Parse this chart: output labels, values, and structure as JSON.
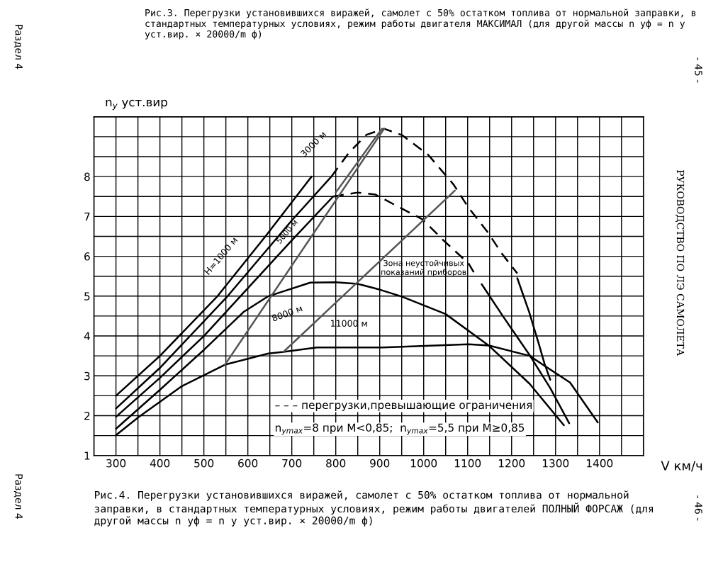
{
  "chart_data": {
    "type": "line",
    "ylabel": "n$_{y}$ уст.вир",
    "xlabel": "V км/ч",
    "xlim": [
      250,
      1500
    ],
    "ylim": [
      1,
      9.5
    ],
    "xticks": [
      300,
      {
        "value": 350,
        "label": null
      },
      400,
      {
        "value": 450,
        "label": null
      },
      500,
      {
        "value": 550,
        "label": null
      },
      600,
      {
        "value": 650,
        "label": null
      },
      700,
      {
        "value": 750,
        "label": null
      },
      800,
      {
        "value": 850,
        "label": null
      },
      900,
      {
        "value": 950,
        "label": null
      },
      1000,
      {
        "value": 1050,
        "label": null
      },
      1100,
      {
        "value": 1150,
        "label": null
      },
      1200,
      {
        "value": 1250,
        "label": null
      },
      1300,
      {
        "value": 1350,
        "label": null
      },
      1400,
      {
        "value": 1450,
        "label": null
      }
    ],
    "yticks": [
      1,
      {
        "value": 1.5,
        "label": null
      },
      2,
      {
        "value": 2.5,
        "label": null
      },
      3,
      {
        "value": 3.5,
        "label": null
      },
      4,
      {
        "value": 4.5,
        "label": null
      },
      5,
      {
        "value": 5.5,
        "label": null
      },
      6,
      {
        "value": 6.5,
        "label": null
      },
      7,
      {
        "value": 7.5,
        "label": null
      },
      8,
      {
        "value": 8.5,
        "label": null
      },
      {
        "value": 9,
        "label": null
      }
    ],
    "grid": true,
    "series": [
      {
        "color": "#000000",
        "line_style": "solid",
        "x": [
          300,
          400,
          531,
          640,
          745
        ],
        "values": [
          2.5,
          3.5,
          5.0,
          6.5,
          8.0
        ]
      },
      {
        "color": "#000000",
        "line_style": "solid",
        "x": [
          300,
          400,
          554,
          700,
          790
        ],
        "values": [
          2.18,
          3.2,
          5.0,
          6.9,
          8.0
        ]
      },
      {
        "color": "#000000",
        "line_style": "dashed",
        "x": [
          790,
          830,
          870,
          910,
          951,
          1010,
          1068,
          1102,
          1144,
          1179,
          1213
        ],
        "values": [
          8.0,
          8.6,
          9.05,
          9.2,
          9.04,
          8.55,
          7.8,
          7.22,
          6.63,
          6.05,
          5.57
        ]
      },
      {
        "color": "#000000",
        "line_style": "solid",
        "x": [
          1213,
          1240,
          1262,
          1275,
          1288
        ],
        "values": [
          5.45,
          4.6,
          3.8,
          3.3,
          2.9
        ]
      },
      {
        "color": "#000000",
        "line_style": "solid",
        "x": [
          300,
          400,
          500,
          600,
          700,
          794
        ],
        "values": [
          1.97,
          2.95,
          4.0,
          5.2,
          6.4,
          7.5
        ]
      },
      {
        "color": "#000000",
        "line_style": "dashed",
        "x": [
          794,
          850,
          890,
          946,
          997,
          1045,
          1102,
          1114
        ],
        "values": [
          7.5,
          7.6,
          7.55,
          7.22,
          6.93,
          6.4,
          5.82,
          5.6
        ]
      },
      {
        "color": "#000000",
        "line_style": "solid",
        "x": [
          1132,
          1180,
          1241,
          1288,
          1331
        ],
        "values": [
          5.3,
          4.5,
          3.52,
          2.69,
          1.81
        ]
      },
      {
        "color": "#000000",
        "line_style": "solid",
        "x": [
          300,
          400,
          500,
          590,
          647,
          742,
          800,
          849,
          901,
          950,
          1050,
          1149,
          1241,
          1319
        ],
        "values": [
          1.67,
          2.65,
          3.65,
          4.6,
          5.0,
          5.34,
          5.35,
          5.31,
          5.16,
          4.99,
          4.55,
          3.75,
          2.8,
          1.76
        ]
      },
      {
        "color": "#000000",
        "line_style": "solid",
        "x": [
          300,
          352,
          450,
          548,
          647,
          681,
          757,
          907,
          1102,
          1149,
          1241,
          1333,
          1396
        ],
        "values": [
          1.51,
          1.97,
          2.74,
          3.28,
          3.56,
          3.6,
          3.71,
          3.71,
          3.79,
          3.76,
          3.5,
          2.83,
          1.83
        ]
      },
      {
        "color": "#555555",
        "line_style": "solid",
        "x": [
          548,
          910
        ],
        "values": [
          3.28,
          9.2
        ]
      },
      {
        "color": "#555555",
        "line_style": "solid",
        "x": [
          681,
          1071
        ],
        "values": [
          3.6,
          7.65
        ]
      },
      {
        "color": "#555555",
        "line_style": "solid",
        "x": [
          800,
          905
        ],
        "values": [
          7.6,
          9.2
        ]
      }
    ],
    "annotations": [
      "Рис.4. Перегрузки установившихся виражей, самолет с 50% остатком топлива от нормальной заправки, в стандартных температурных условиях, режим работы двигателей ПОЛНЫЙ ФОРСАЖ (для другой массы n уф = n у уст.вир. × 20000/m ф)",
      "Рис.3. Перегрузки установившихся виражей, самолет с 50% остатком топлива от нормальной заправки, в стандартных температурных условиях, режим работы двигателя МАКСИМАЛ (для другой массы n уф = n у уст.вир. × 20000/m ф)",
      "– – – перегрузки,превышающие ограничения",
      "n$_{ymax}$=8 при M<0,85;  n$_{ymax}$=5,5 при M≥0,85",
      "Раздел 4",
      "- 46 -",
      "РУКОВОДСТВО ПО ЛЭ САМОЛЕТА",
      "- 45 -",
      "Раздел 4",
      "Зона неустойчивых\nпоказаний приборов",
      "H=1000 м",
      "3000 м",
      "5000 м",
      "8000 м",
      "11000 м"
    ]
  }
}
